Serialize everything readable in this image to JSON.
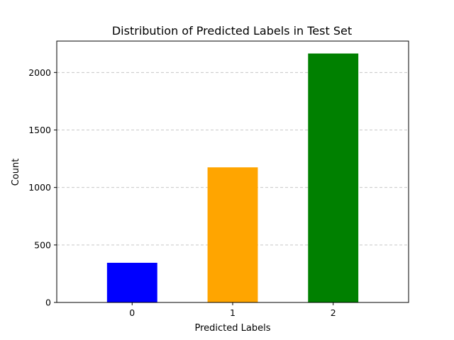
{
  "chart_data": {
    "type": "bar",
    "title": "Distribution of Predicted Labels in Test Set",
    "xlabel": "Predicted Labels",
    "ylabel": "Count",
    "categories": [
      "0",
      "1",
      "2"
    ],
    "values": [
      345,
      1175,
      2165
    ],
    "colors": [
      "#0000ff",
      "#ffa500",
      "#008000"
    ],
    "ylim": [
      0,
      2273
    ],
    "yticks": [
      0,
      500,
      1000,
      1500,
      2000
    ],
    "grid": "y-dashed",
    "legend": "none"
  }
}
